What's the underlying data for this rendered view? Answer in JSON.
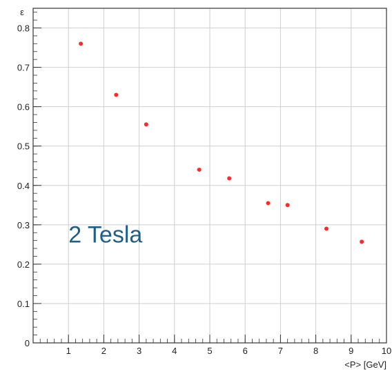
{
  "chart_data": {
    "type": "scatter",
    "title": "",
    "xlabel": "<P> [GeV]",
    "ylabel": "ε",
    "xlim": [
      0,
      10
    ],
    "ylim": [
      0,
      0.85
    ],
    "x_ticks": [
      "1",
      "2",
      "3",
      "4",
      "5",
      "6",
      "7",
      "8",
      "9",
      "10"
    ],
    "y_ticks": [
      "0",
      "0.1",
      "0.2",
      "0.3",
      "0.4",
      "0.5",
      "0.6",
      "0.7",
      "0.8"
    ],
    "grid": true,
    "marker_color": "#ff2a2a",
    "annotation": "2 Tesla",
    "annotation_color": "#1f5f86",
    "series": [
      {
        "x": [
          1.35,
          2.35,
          3.2,
          4.7,
          5.55,
          6.65,
          7.2,
          8.3,
          9.3
        ],
        "y": [
          0.76,
          0.63,
          0.555,
          0.44,
          0.418,
          0.355,
          0.35,
          0.29,
          0.257
        ]
      }
    ]
  }
}
